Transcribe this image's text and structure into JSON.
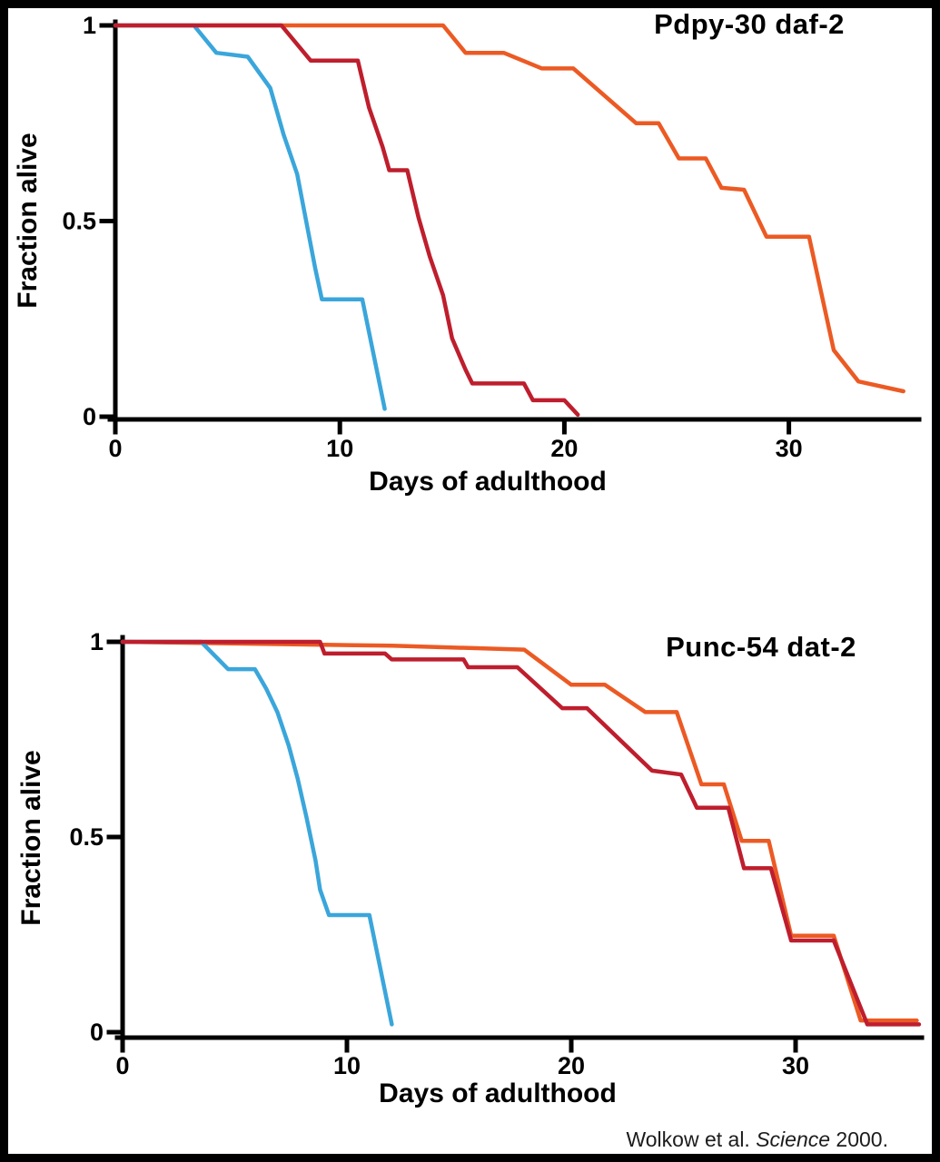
{
  "figure": {
    "footer": {
      "prefix": "Wolkow et al. ",
      "journal": "Science",
      "suffix": " 2000."
    }
  },
  "chart_data": [
    {
      "type": "line",
      "title": "Pdpy-30 daf-2",
      "xlabel": "Days of adulthood",
      "ylabel": "Fraction alive",
      "xlim": [
        0,
        36
      ],
      "ylim": [
        0,
        1
      ],
      "grid": false,
      "legend": "none",
      "x_ticks": [
        {
          "value": 0,
          "label": "0"
        },
        {
          "value": 10,
          "label": "10"
        },
        {
          "value": 20,
          "label": "20"
        },
        {
          "value": 30,
          "label": "30"
        }
      ],
      "y_ticks": [
        {
          "value": 1,
          "label": "1"
        },
        {
          "value": 0.5,
          "label": "0.5"
        },
        {
          "value": 0,
          "label": "0"
        }
      ],
      "series": [
        {
          "name": "orange-series",
          "color": "#EC5A24",
          "points": [
            [
              0,
              1
            ],
            [
              14.6,
              1
            ],
            [
              15.6,
              0.93
            ],
            [
              17.3,
              0.93
            ],
            [
              19,
              0.89
            ],
            [
              20.4,
              0.89
            ],
            [
              23.2,
              0.75
            ],
            [
              24.2,
              0.75
            ],
            [
              25.1,
              0.66
            ],
            [
              26.3,
              0.66
            ],
            [
              27,
              0.585
            ],
            [
              28,
              0.58
            ],
            [
              29,
              0.46
            ],
            [
              30.9,
              0.46
            ],
            [
              32,
              0.17
            ],
            [
              33.1,
              0.09
            ],
            [
              35.1,
              0.065
            ]
          ]
        },
        {
          "name": "cyan-series",
          "color": "#3AA6DB",
          "points": [
            [
              0,
              1
            ],
            [
              3.5,
              1
            ],
            [
              4.5,
              0.93
            ],
            [
              5.9,
              0.92
            ],
            [
              6.9,
              0.84
            ],
            [
              7.5,
              0.72
            ],
            [
              8.1,
              0.62
            ],
            [
              8.5,
              0.5
            ],
            [
              8.9,
              0.38
            ],
            [
              9.2,
              0.3
            ],
            [
              11,
              0.3
            ],
            [
              12,
              0.02
            ]
          ]
        },
        {
          "name": "crimson-series",
          "color": "#BE1E2D",
          "points": [
            [
              0,
              1
            ],
            [
              7.4,
              1
            ],
            [
              8.7,
              0.91
            ],
            [
              10.8,
              0.91
            ],
            [
              11.3,
              0.79
            ],
            [
              11.9,
              0.69
            ],
            [
              12.2,
              0.63
            ],
            [
              13,
              0.63
            ],
            [
              13.5,
              0.51
            ],
            [
              14,
              0.41
            ],
            [
              14.6,
              0.31
            ],
            [
              15,
              0.2
            ],
            [
              15.6,
              0.12
            ],
            [
              15.9,
              0.085
            ],
            [
              18.2,
              0.085
            ],
            [
              18.6,
              0.042
            ],
            [
              20,
              0.042
            ],
            [
              20.6,
              0.005
            ]
          ]
        }
      ]
    },
    {
      "type": "line",
      "title": "Punc-54 dat-2",
      "xlabel": "Days of adulthood",
      "ylabel": "Fraction alive",
      "xlim": [
        0,
        36
      ],
      "ylim": [
        0,
        1
      ],
      "grid": false,
      "legend": "none",
      "x_ticks": [
        {
          "value": 0,
          "label": "0"
        },
        {
          "value": 10,
          "label": "10"
        },
        {
          "value": 20,
          "label": "20"
        },
        {
          "value": 30,
          "label": "30"
        }
      ],
      "y_ticks": [
        {
          "value": 1,
          "label": "1"
        },
        {
          "value": 0.5,
          "label": "0.5"
        },
        {
          "value": 0,
          "label": "0"
        }
      ],
      "series": [
        {
          "name": "orange-series",
          "color": "#EC5A24",
          "points": [
            [
              0,
              1
            ],
            [
              12,
              0.99
            ],
            [
              17.9,
              0.98
            ],
            [
              20,
              0.89
            ],
            [
              21.5,
              0.89
            ],
            [
              23.3,
              0.82
            ],
            [
              24.7,
              0.82
            ],
            [
              25.8,
              0.635
            ],
            [
              26.8,
              0.635
            ],
            [
              27.6,
              0.49
            ],
            [
              28.8,
              0.49
            ],
            [
              29.8,
              0.247
            ],
            [
              31.7,
              0.247
            ],
            [
              32.9,
              0.03
            ],
            [
              35.4,
              0.03
            ]
          ]
        },
        {
          "name": "cyan-series",
          "color": "#3AA6DB",
          "points": [
            [
              0,
              1
            ],
            [
              3.5,
              1
            ],
            [
              4.7,
              0.93
            ],
            [
              5.9,
              0.93
            ],
            [
              6.4,
              0.88
            ],
            [
              6.9,
              0.82
            ],
            [
              7.4,
              0.735
            ],
            [
              7.8,
              0.65
            ],
            [
              8.2,
              0.55
            ],
            [
              8.6,
              0.44
            ],
            [
              8.8,
              0.365
            ],
            [
              9.2,
              0.3
            ],
            [
              11,
              0.3
            ],
            [
              12,
              0.02
            ]
          ]
        },
        {
          "name": "crimson-series",
          "color": "#BE1E2D",
          "points": [
            [
              0,
              1
            ],
            [
              8.8,
              1
            ],
            [
              9,
              0.97
            ],
            [
              11.7,
              0.97
            ],
            [
              12,
              0.955
            ],
            [
              15.2,
              0.955
            ],
            [
              15.4,
              0.935
            ],
            [
              17.6,
              0.935
            ],
            [
              19.6,
              0.83
            ],
            [
              20.7,
              0.83
            ],
            [
              23.6,
              0.67
            ],
            [
              24.9,
              0.66
            ],
            [
              25.6,
              0.575
            ],
            [
              27,
              0.575
            ],
            [
              27.7,
              0.42
            ],
            [
              28.9,
              0.42
            ],
            [
              29.8,
              0.235
            ],
            [
              31.7,
              0.235
            ],
            [
              33.2,
              0.02
            ],
            [
              35.5,
              0.02
            ]
          ]
        }
      ]
    }
  ]
}
